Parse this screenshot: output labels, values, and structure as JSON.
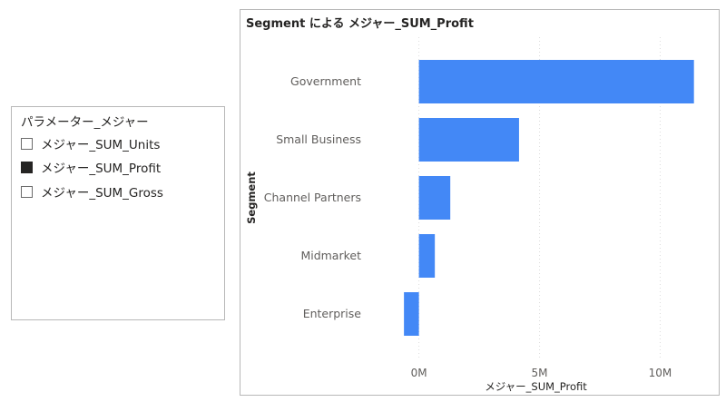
{
  "slicer": {
    "title": "パラメーター_メジャー",
    "items": [
      {
        "label": "メジャー_SUM_Units",
        "checked": false
      },
      {
        "label": "メジャー_SUM_Profit",
        "checked": true
      },
      {
        "label": "メジャー_SUM_Gross",
        "checked": false
      }
    ]
  },
  "chart": {
    "title": "Segment による メジャー_SUM_Profit"
  },
  "chart_data": {
    "type": "bar",
    "orientation": "horizontal",
    "title": "Segment による メジャー_SUM_Profit",
    "xlabel": "メジャー_SUM_Profit",
    "ylabel": "Segment",
    "categories": [
      "Government",
      "Small Business",
      "Channel Partners",
      "Midmarket",
      "Enterprise"
    ],
    "values": [
      11400000,
      4150000,
      1300000,
      660000,
      -620000
    ],
    "xlim": [
      -700000,
      11600000
    ],
    "xticks": [
      0,
      5000000,
      10000000
    ],
    "xtick_labels": [
      "0M",
      "5M",
      "10M"
    ],
    "grid": "vertical dotted",
    "bar_color": "#4388f6",
    "grid_color": "#dddddd"
  }
}
